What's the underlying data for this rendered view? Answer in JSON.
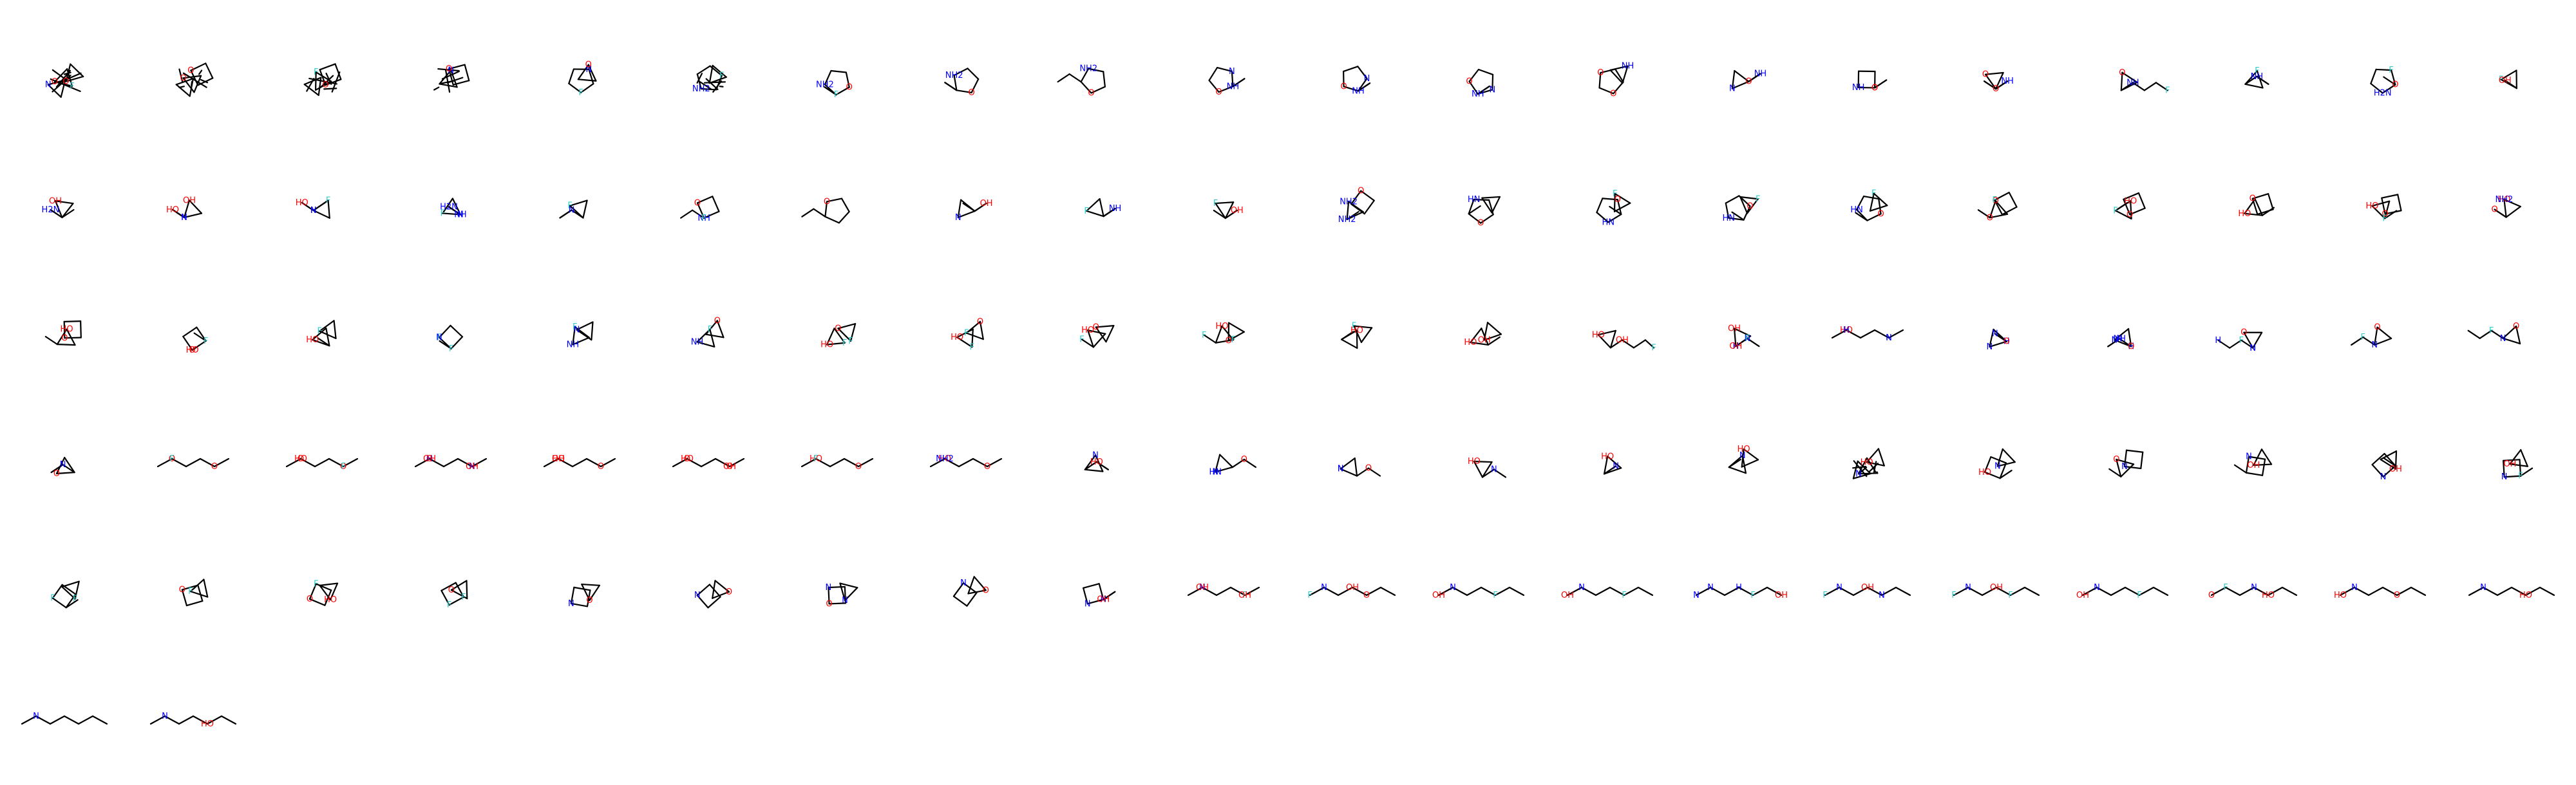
{
  "grid": {
    "columns": 20,
    "count": 101
  },
  "colors": {
    "bond": "#000000",
    "O": "#ff0000",
    "N": "#0000ff",
    "F": "#33cccc"
  },
  "molecules": [
    {
      "labels": [
        "O",
        "O",
        "N",
        "F"
      ],
      "rings": [
        3,
        3,
        3
      ],
      "chain": 0,
      "dense": true
    },
    {
      "labels": [
        "O",
        "O"
      ],
      "rings": [
        3,
        4,
        3
      ],
      "chain": 0,
      "dense": true
    },
    {
      "labels": [
        "F",
        "O"
      ],
      "rings": [
        3,
        4,
        3
      ],
      "chain": 0,
      "dense": true
    },
    {
      "labels": [
        "N",
        "O"
      ],
      "rings": [
        3,
        4
      ],
      "chain": 0,
      "dense": true
    },
    {
      "labels": [
        "F",
        "N",
        "O"
      ],
      "rings": [
        5,
        3
      ],
      "chain": 0
    },
    {
      "labels": [
        "NH2",
        "F"
      ],
      "rings": [
        5,
        3
      ],
      "chain": 0,
      "dense": true
    },
    {
      "labels": [
        "NH2",
        "O",
        "F"
      ],
      "rings": [
        5
      ],
      "chain": 2
    },
    {
      "labels": [
        "NH2",
        "O"
      ],
      "rings": [
        5
      ],
      "chain": 2
    },
    {
      "labels": [
        "NH2",
        "O"
      ],
      "rings": [
        5
      ],
      "chain": 2
    },
    {
      "labels": [
        "O",
        "N",
        "NH"
      ],
      "rings": [
        5
      ],
      "chain": 2
    },
    {
      "labels": [
        "O",
        "N",
        "NH"
      ],
      "rings": [
        5
      ],
      "chain": 2
    },
    {
      "labels": [
        "O",
        "N",
        "NH"
      ],
      "rings": [
        5
      ],
      "chain": 2
    },
    {
      "labels": [
        "O",
        "O",
        "NH"
      ],
      "rings": [
        5,
        3
      ],
      "chain": 0
    },
    {
      "labels": [
        "N",
        "NH",
        "O"
      ],
      "rings": [
        3
      ],
      "chain": 3
    },
    {
      "labels": [
        "NH",
        "O",
        "O"
      ],
      "rings": [
        4
      ],
      "chain": 2
    },
    {
      "labels": [
        "O",
        "NH",
        "O"
      ],
      "rings": [
        3
      ],
      "chain": 4
    },
    {
      "labels": [
        "O",
        "NH",
        "F"
      ],
      "rings": [
        3
      ],
      "chain": 4
    },
    {
      "labels": [
        "F",
        "NH"
      ],
      "rings": [
        3
      ],
      "chain": 3
    },
    {
      "labels": [
        "H2N",
        "F",
        "O"
      ],
      "rings": [
        5
      ],
      "chain": 1
    },
    {
      "labels": [
        "F",
        "OH"
      ],
      "rings": [
        3
      ],
      "chain": 3
    },
    {
      "labels": [
        "OH",
        "H2N"
      ],
      "rings": [
        3
      ],
      "chain": 3
    },
    {
      "labels": [
        "OH",
        "HO",
        "N",
        "H"
      ],
      "rings": [
        3
      ],
      "chain": 3
    },
    {
      "labels": [
        "F",
        "HO",
        "N",
        "H"
      ],
      "rings": [
        3
      ],
      "chain": 3
    },
    {
      "labels": [
        "F",
        "H2N",
        "NH",
        "N"
      ],
      "rings": [
        3
      ],
      "chain": 3
    },
    {
      "labels": [
        "F",
        "N"
      ],
      "rings": [
        3
      ],
      "chain": 3
    },
    {
      "labels": [
        "O",
        "NH",
        "F"
      ],
      "rings": [
        4
      ],
      "chain": 2
    },
    {
      "labels": [
        "O"
      ],
      "rings": [
        5
      ],
      "chain": 2
    },
    {
      "labels": [
        "N",
        "OH"
      ],
      "rings": [
        3
      ],
      "chain": 3
    },
    {
      "labels": [
        "F",
        "NH"
      ],
      "rings": [
        3
      ],
      "chain": 3
    },
    {
      "labels": [
        "F",
        "OH"
      ],
      "rings": [
        3
      ],
      "chain": 3
    },
    {
      "labels": [
        "NH2",
        "O",
        "NH2"
      ],
      "rings": [
        3,
        4
      ],
      "chain": 1
    },
    {
      "labels": [
        "HN",
        "O"
      ],
      "rings": [
        5,
        3
      ],
      "chain": 1
    },
    {
      "labels": [
        "HN",
        "O",
        "F"
      ],
      "rings": [
        5,
        3
      ],
      "chain": 1
    },
    {
      "labels": [
        "HN",
        "O",
        "F"
      ],
      "rings": [
        5,
        3
      ],
      "chain": 1
    },
    {
      "labels": [
        "HN",
        "O",
        "F"
      ],
      "rings": [
        5,
        3
      ],
      "chain": 1
    },
    {
      "labels": [
        "O",
        "F",
        "O"
      ],
      "rings": [
        3,
        4
      ],
      "chain": 1
    },
    {
      "labels": [
        "HO",
        "O",
        "F"
      ],
      "rings": [
        3,
        4
      ],
      "chain": 1
    },
    {
      "labels": [
        "HO",
        "O"
      ],
      "rings": [
        3,
        4
      ],
      "chain": 1
    },
    {
      "labels": [
        "HO",
        "O",
        "F"
      ],
      "rings": [
        3,
        4
      ],
      "chain": 1
    },
    {
      "labels": [
        "HO",
        "O",
        "NH2"
      ],
      "rings": [
        3
      ],
      "chain": 2
    },
    {
      "labels": [
        "HO",
        "O"
      ],
      "rings": [
        3,
        4
      ],
      "chain": 1
    },
    {
      "labels": [
        "HO",
        "F",
        "O"
      ],
      "rings": [
        4
      ],
      "chain": 1
    },
    {
      "labels": [
        "HO",
        "F"
      ],
      "rings": [
        3,
        3
      ],
      "chain": 1
    },
    {
      "labels": [
        "F",
        "F",
        "N"
      ],
      "rings": [
        4
      ],
      "chain": 1
    },
    {
      "labels": [
        "F",
        "N",
        "NH"
      ],
      "rings": [
        3,
        3
      ],
      "chain": 0
    },
    {
      "labels": [
        "F",
        "O",
        "NH"
      ],
      "rings": [
        3,
        3
      ],
      "chain": 0
    },
    {
      "labels": [
        "HO",
        "O",
        "F",
        "F"
      ],
      "rings": [
        3,
        3
      ],
      "chain": 0
    },
    {
      "labels": [
        "HO",
        "O",
        "F",
        "F"
      ],
      "rings": [
        3,
        3
      ],
      "chain": 0
    },
    {
      "labels": [
        "HO",
        "O",
        "F"
      ],
      "rings": [
        3,
        3
      ],
      "chain": 1
    },
    {
      "labels": [
        "HO",
        "O",
        "F",
        "F"
      ],
      "rings": [
        3,
        3
      ],
      "chain": 1
    },
    {
      "labels": [
        "HO",
        "F"
      ],
      "rings": [
        3,
        3
      ],
      "chain": 1
    },
    {
      "labels": [
        "HO",
        "OH"
      ],
      "rings": [
        3,
        3
      ],
      "chain": 1
    },
    {
      "labels": [
        "HO",
        "OH",
        "F"
      ],
      "rings": [
        3
      ],
      "chain": 4
    },
    {
      "labels": [
        "OH",
        "N",
        "H",
        "OH",
        "F"
      ],
      "rings": [
        3
      ],
      "chain": 3
    },
    {
      "labels": [
        "HO",
        "N",
        "H",
        "N",
        "H"
      ],
      "rings": [],
      "chain": 5
    },
    {
      "labels": [
        "N",
        "N",
        "H",
        "O"
      ],
      "rings": [
        3
      ],
      "chain": 3
    },
    {
      "labels": [
        "N",
        "N",
        "H",
        "O",
        "NH"
      ],
      "rings": [
        3
      ],
      "chain": 3
    },
    {
      "labels": [
        "O",
        "F",
        "N",
        "N",
        "H"
      ],
      "rings": [
        3
      ],
      "chain": 3
    },
    {
      "labels": [
        "O",
        "F",
        "N"
      ],
      "rings": [
        3
      ],
      "chain": 3
    },
    {
      "labels": [
        "O",
        "F",
        "N"
      ],
      "rings": [
        3
      ],
      "chain": 3
    },
    {
      "labels": [
        "O",
        "N"
      ],
      "rings": [
        3
      ],
      "chain": 3
    },
    {
      "labels": [
        "O",
        "O",
        "F"
      ],
      "rings": [],
      "chain": 5
    },
    {
      "labels": [
        "HO",
        "O",
        "O",
        "F"
      ],
      "rings": [],
      "chain": 5
    },
    {
      "labels": [
        "O",
        "N",
        "H",
        "OH",
        "OH"
      ],
      "rings": [],
      "chain": 5
    },
    {
      "labels": [
        "HO",
        "O",
        "OH"
      ],
      "rings": [],
      "chain": 5
    },
    {
      "labels": [
        "HO",
        "O",
        "O",
        "OH"
      ],
      "rings": [],
      "chain": 5
    },
    {
      "labels": [
        "HO",
        "O",
        "F"
      ],
      "rings": [],
      "chain": 5
    },
    {
      "labels": [
        "HO",
        "O",
        "NH2"
      ],
      "rings": [],
      "chain": 5
    },
    {
      "labels": [
        "N",
        "HO"
      ],
      "rings": [
        3
      ],
      "chain": 3
    },
    {
      "labels": [
        "HN",
        "O",
        "N"
      ],
      "rings": [
        3
      ],
      "chain": 2
    },
    {
      "labels": [
        "N",
        "O",
        "N"
      ],
      "rings": [
        3
      ],
      "chain": 2
    },
    {
      "labels": [
        "HO",
        "N"
      ],
      "rings": [
        3
      ],
      "chain": 2
    },
    {
      "labels": [
        "HO",
        "N"
      ],
      "rings": [
        3
      ],
      "chain": 2
    },
    {
      "labels": [
        "N",
        "HO"
      ],
      "rings": [
        3,
        3
      ],
      "chain": 1
    },
    {
      "labels": [
        "N",
        "HO"
      ],
      "rings": [
        3,
        3,
        3
      ],
      "chain": 0,
      "dense": true
    },
    {
      "labels": [
        "HO",
        "N"
      ],
      "rings": [
        4,
        3
      ],
      "chain": 1
    },
    {
      "labels": [
        "O",
        "N"
      ],
      "rings": [
        3,
        4
      ],
      "chain": 1
    },
    {
      "labels": [
        "N",
        "OH"
      ],
      "rings": [
        4,
        3
      ],
      "chain": 1
    },
    {
      "labels": [
        "N",
        "OH"
      ],
      "rings": [
        4,
        3
      ],
      "chain": 1
    },
    {
      "labels": [
        "N",
        "OH",
        "F"
      ],
      "rings": [
        4,
        3
      ],
      "chain": 1
    },
    {
      "labels": [
        "F",
        "F"
      ],
      "rings": [
        4,
        3
      ],
      "chain": 1
    },
    {
      "labels": [
        "O",
        "F"
      ],
      "rings": [
        4,
        3
      ],
      "chain": 0
    },
    {
      "labels": [
        "F",
        "HO",
        "O"
      ],
      "rings": [
        4,
        3
      ],
      "chain": 0
    },
    {
      "labels": [
        "F",
        "O",
        "F"
      ],
      "rings": [
        4,
        3
      ],
      "chain": 0
    },
    {
      "labels": [
        "N",
        "O"
      ],
      "rings": [
        4,
        3
      ],
      "chain": 0
    },
    {
      "labels": [
        "N",
        "O"
      ],
      "rings": [
        4,
        3
      ],
      "chain": 0
    },
    {
      "labels": [
        "N",
        "N",
        "O"
      ],
      "rings": [
        4,
        3
      ],
      "chain": 0
    },
    {
      "labels": [
        "N",
        "O"
      ],
      "rings": [
        4,
        3
      ],
      "chain": 0
    },
    {
      "labels": [
        "N",
        "N",
        "OH"
      ],
      "rings": [
        4
      ],
      "chain": 2
    },
    {
      "labels": [
        "N",
        "F",
        "OH",
        "OH"
      ],
      "rings": [],
      "chain": 5
    },
    {
      "labels": [
        "N",
        "O",
        "F",
        "OH"
      ],
      "rings": [],
      "chain": 6
    },
    {
      "labels": [
        "N",
        "F",
        "OH"
      ],
      "rings": [],
      "chain": 6
    },
    {
      "labels": [
        "N",
        "F",
        "OH"
      ],
      "rings": [],
      "chain": 6
    },
    {
      "labels": [
        "N",
        "F",
        "N",
        "H",
        "OH"
      ],
      "rings": [],
      "chain": 6
    },
    {
      "labels": [
        "N",
        "N",
        "F",
        "OH"
      ],
      "rings": [],
      "chain": 6
    },
    {
      "labels": [
        "N",
        "F",
        "F",
        "OH"
      ],
      "rings": [],
      "chain": 6
    },
    {
      "labels": [
        "N",
        "F",
        "OH"
      ],
      "rings": [],
      "chain": 6
    },
    {
      "labels": [
        "F",
        "HO",
        "O",
        "N"
      ],
      "rings": [],
      "chain": 6
    },
    {
      "labels": [
        "N",
        "O",
        "HO"
      ],
      "rings": [],
      "chain": 6
    },
    {
      "labels": [
        "N",
        "HO"
      ],
      "rings": [],
      "chain": 6
    },
    {
      "labels": [
        "N"
      ],
      "rings": [],
      "chain": 6
    },
    {
      "labels": [
        "N",
        "HO"
      ],
      "rings": [],
      "chain": 6
    }
  ]
}
